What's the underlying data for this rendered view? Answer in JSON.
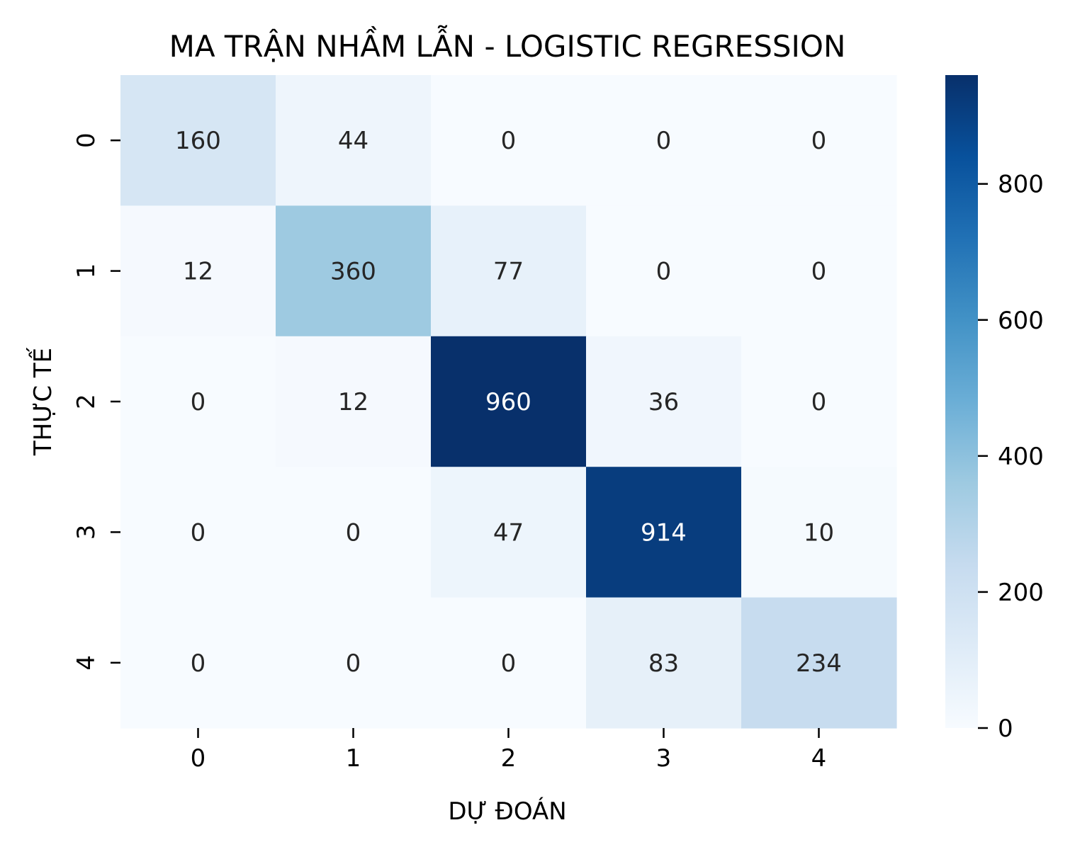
{
  "chart_data": {
    "type": "heatmap",
    "title": "MA TRẬN NHẦM LẪN - LOGISTIC REGRESSION",
    "xlabel": "DỰ ĐOÁN",
    "ylabel": "THỰC TẾ",
    "x_categories": [
      "0",
      "1",
      "2",
      "3",
      "4"
    ],
    "y_categories": [
      "0",
      "1",
      "2",
      "3",
      "4"
    ],
    "values": [
      [
        160,
        44,
        0,
        0,
        0
      ],
      [
        12,
        360,
        77,
        0,
        0
      ],
      [
        0,
        12,
        960,
        36,
        0
      ],
      [
        0,
        0,
        47,
        914,
        10
      ],
      [
        0,
        0,
        0,
        83,
        234
      ]
    ],
    "colormap": "Blues",
    "colorbar": {
      "min": 0,
      "max": 960,
      "ticks": [
        0,
        200,
        400,
        600,
        800
      ]
    }
  }
}
